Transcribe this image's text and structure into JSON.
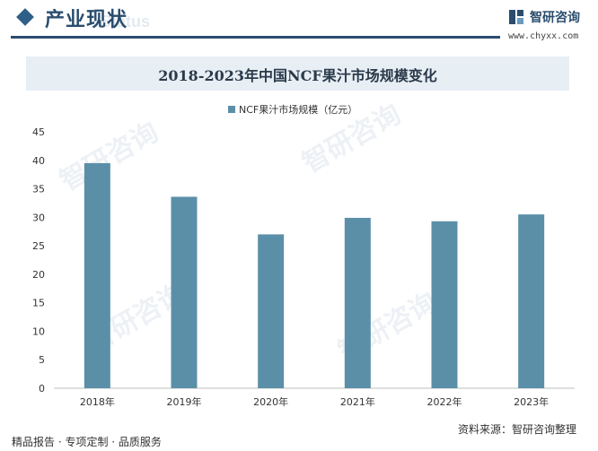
{
  "header": {
    "section_title": "产业现状",
    "section_watermark": "Status",
    "brand_name": "智研咨询",
    "brand_url": "www.chyxx.com"
  },
  "watermark_text": "智研咨询",
  "chart_data": {
    "type": "bar",
    "title": "2018-2023年中国NCF果汁市场规模变化",
    "categories": [
      "2018年",
      "2019年",
      "2020年",
      "2021年",
      "2022年",
      "2023年"
    ],
    "series": [
      {
        "name": "NCF果汁市场规模（亿元）",
        "values": [
          39.5,
          33.6,
          27.0,
          29.9,
          29.3,
          30.5
        ],
        "color": "#5b8fa8"
      }
    ],
    "xlabel": "",
    "ylabel": "",
    "ylim": [
      0,
      45
    ],
    "yticks": [
      0,
      5,
      10,
      15,
      20,
      25,
      30,
      35,
      40,
      45
    ],
    "grid": false,
    "legend": "top-center"
  },
  "footer": {
    "left_text": "精品报告 · 专项定制 · 品质服务",
    "source_text": "资料来源：智研咨询整理"
  }
}
